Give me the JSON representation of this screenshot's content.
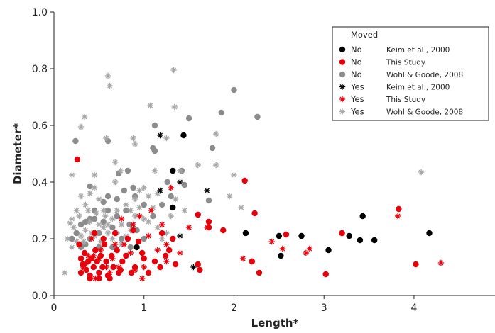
{
  "chart_data": {
    "type": "scatter",
    "xlabel": "Length*",
    "ylabel": "Diameter*",
    "xlim": [
      0,
      4.9
    ],
    "ylim": [
      0,
      1.0
    ],
    "x_ticks": [
      0,
      1,
      2,
      3,
      4
    ],
    "x_tick_labels": [
      "0",
      "1",
      "2",
      "3",
      "4"
    ],
    "y_ticks": [
      0,
      0.2,
      0.4,
      0.6,
      0.8,
      1.0
    ],
    "y_tick_labels": [
      "0.0",
      "0.2",
      "0.4",
      "0.6",
      "0.8",
      "1.0"
    ],
    "grid": false,
    "legend": {
      "title": "Moved",
      "placement": "top-right",
      "entries": [
        {
          "moved": "No",
          "source": "Keim et al., 2000",
          "marker": "circle",
          "color": "#000000"
        },
        {
          "moved": "No",
          "source": "This Study",
          "marker": "circle",
          "color": "#e8000b"
        },
        {
          "moved": "No",
          "source": "Wohl & Goode, 2008",
          "marker": "circle",
          "color": "#8c8c8c"
        },
        {
          "moved": "Yes",
          "source": "Keim et al., 2000",
          "marker": "asterisk",
          "color": "#000000"
        },
        {
          "moved": "Yes",
          "source": "This Study",
          "marker": "asterisk",
          "color": "#e8000b"
        },
        {
          "moved": "Yes",
          "source": "Wohl & Goode, 2008",
          "marker": "asterisk",
          "color": "#a6a6a6"
        }
      ]
    },
    "series": [
      {
        "marker": "circle",
        "color": "#000000",
        "points": [
          [
            1.44,
            0.565
          ],
          [
            1.32,
            0.44
          ],
          [
            1.32,
            0.31
          ],
          [
            2.13,
            0.22
          ],
          [
            2.5,
            0.21
          ],
          [
            2.52,
            0.14
          ],
          [
            2.75,
            0.21
          ],
          [
            3.05,
            0.16
          ],
          [
            3.28,
            0.21
          ],
          [
            3.4,
            0.195
          ],
          [
            3.43,
            0.28
          ],
          [
            3.56,
            0.195
          ],
          [
            4.17,
            0.22
          ],
          [
            0.92,
            0.17
          ]
        ]
      },
      {
        "marker": "circle",
        "color": "#e8000b",
        "points": [
          [
            0.26,
            0.48
          ],
          [
            2.12,
            0.405
          ],
          [
            2.23,
            0.29
          ],
          [
            1.6,
            0.285
          ],
          [
            1.72,
            0.26
          ],
          [
            1.72,
            0.24
          ],
          [
            1.88,
            0.23
          ],
          [
            2.58,
            0.215
          ],
          [
            3.2,
            0.22
          ],
          [
            3.83,
            0.305
          ],
          [
            2.2,
            0.12
          ],
          [
            2.28,
            0.08
          ],
          [
            3.02,
            0.075
          ],
          [
            4.02,
            0.11
          ],
          [
            1.6,
            0.11
          ],
          [
            1.62,
            0.09
          ],
          [
            1.2,
            0.22
          ],
          [
            1.32,
            0.2
          ],
          [
            1.28,
            0.16
          ],
          [
            1.18,
            0.1
          ],
          [
            1.05,
            0.08
          ],
          [
            0.98,
            0.15
          ],
          [
            0.9,
            0.1
          ],
          [
            0.86,
            0.08
          ],
          [
            0.82,
            0.2
          ],
          [
            0.76,
            0.12
          ],
          [
            0.72,
            0.08
          ],
          [
            0.7,
            0.16
          ],
          [
            0.66,
            0.1
          ],
          [
            0.64,
            0.14
          ],
          [
            0.6,
            0.07
          ],
          [
            0.58,
            0.12
          ],
          [
            0.56,
            0.18
          ],
          [
            0.54,
            0.1
          ],
          [
            0.52,
            0.14
          ],
          [
            0.5,
            0.08
          ],
          [
            0.48,
            0.12
          ],
          [
            0.46,
            0.16
          ],
          [
            0.44,
            0.1
          ],
          [
            0.42,
            0.13
          ],
          [
            0.4,
            0.07
          ],
          [
            0.38,
            0.12
          ],
          [
            0.36,
            0.09
          ],
          [
            0.34,
            0.15
          ],
          [
            0.32,
            0.11
          ],
          [
            0.3,
            0.13
          ],
          [
            0.3,
            0.08
          ],
          [
            0.28,
            0.18
          ],
          [
            0.45,
            0.22
          ],
          [
            0.55,
            0.2
          ],
          [
            0.62,
            0.06
          ],
          [
            0.68,
            0.22
          ],
          [
            0.74,
            0.09
          ],
          [
            0.8,
            0.14
          ],
          [
            0.88,
            0.23
          ],
          [
            0.94,
            0.19
          ],
          [
            1.0,
            0.13
          ],
          [
            1.12,
            0.12
          ],
          [
            1.24,
            0.14
          ],
          [
            1.35,
            0.11
          ],
          [
            0.4,
            0.06
          ],
          [
            0.5,
            0.06
          ]
        ]
      },
      {
        "marker": "circle",
        "color": "#8c8c8c",
        "points": [
          [
            0.24,
            0.545
          ],
          [
            0.4,
            0.385
          ],
          [
            0.4,
            0.27
          ],
          [
            0.6,
            0.545
          ],
          [
            0.72,
            0.43
          ],
          [
            0.78,
            0.37
          ],
          [
            0.8,
            0.3
          ],
          [
            0.82,
            0.44
          ],
          [
            0.84,
            0.25
          ],
          [
            0.88,
            0.38
          ],
          [
            0.9,
            0.35
          ],
          [
            0.92,
            0.23
          ],
          [
            1.0,
            0.32
          ],
          [
            1.0,
            0.2
          ],
          [
            1.1,
            0.52
          ],
          [
            1.12,
            0.51
          ],
          [
            1.12,
            0.6
          ],
          [
            1.26,
            0.4
          ],
          [
            1.3,
            0.35
          ],
          [
            1.42,
            0.44
          ],
          [
            1.45,
            0.39
          ],
          [
            1.5,
            0.625
          ],
          [
            1.72,
            0.335
          ],
          [
            1.76,
            0.52
          ],
          [
            1.86,
            0.645
          ],
          [
            2.0,
            0.725
          ],
          [
            2.26,
            0.63
          ],
          [
            0.2,
            0.2
          ],
          [
            0.25,
            0.22
          ],
          [
            0.3,
            0.25
          ],
          [
            0.35,
            0.18
          ],
          [
            0.4,
            0.2
          ],
          [
            0.45,
            0.3
          ],
          [
            0.5,
            0.22
          ],
          [
            0.55,
            0.26
          ],
          [
            0.6,
            0.3
          ],
          [
            0.65,
            0.24
          ],
          [
            0.7,
            0.28
          ],
          [
            0.3,
            0.17
          ],
          [
            0.5,
            0.17
          ],
          [
            0.65,
            0.17
          ],
          [
            0.75,
            0.2
          ],
          [
            0.6,
            0.35
          ],
          [
            0.7,
            0.34
          ],
          [
            0.55,
            0.33
          ],
          [
            0.45,
            0.27
          ],
          [
            0.35,
            0.26
          ],
          [
            0.85,
            0.17
          ],
          [
            1.1,
            0.28
          ],
          [
            1.2,
            0.32
          ]
        ]
      },
      {
        "marker": "asterisk",
        "color": "#000000",
        "points": [
          [
            1.18,
            0.565
          ],
          [
            1.18,
            0.37
          ],
          [
            1.4,
            0.4
          ],
          [
            1.7,
            0.37
          ],
          [
            1.4,
            0.21
          ],
          [
            1.55,
            0.1
          ]
        ]
      },
      {
        "marker": "asterisk",
        "color": "#e8000b",
        "points": [
          [
            1.3,
            0.38
          ],
          [
            1.4,
            0.15
          ],
          [
            1.5,
            0.24
          ],
          [
            1.7,
            0.24
          ],
          [
            2.1,
            0.13
          ],
          [
            2.2,
            0.12
          ],
          [
            2.42,
            0.19
          ],
          [
            2.54,
            0.165
          ],
          [
            2.8,
            0.15
          ],
          [
            2.84,
            0.165
          ],
          [
            3.2,
            0.22
          ],
          [
            3.82,
            0.28
          ],
          [
            4.3,
            0.115
          ],
          [
            1.08,
            0.3
          ],
          [
            1.2,
            0.25
          ],
          [
            1.25,
            0.18
          ],
          [
            1.25,
            0.12
          ],
          [
            1.15,
            0.16
          ],
          [
            1.05,
            0.21
          ],
          [
            0.98,
            0.06
          ],
          [
            0.9,
            0.09
          ],
          [
            0.85,
            0.15
          ],
          [
            0.78,
            0.18
          ],
          [
            0.72,
            0.1
          ],
          [
            0.65,
            0.13
          ],
          [
            0.58,
            0.1
          ],
          [
            0.52,
            0.16
          ],
          [
            0.46,
            0.06
          ],
          [
            0.42,
            0.2
          ],
          [
            0.38,
            0.14
          ],
          [
            0.35,
            0.11
          ],
          [
            0.32,
            0.1
          ],
          [
            0.5,
            0.13
          ],
          [
            0.62,
            0.08
          ],
          [
            0.88,
            0.25
          ],
          [
            0.95,
            0.28
          ],
          [
            1.0,
            0.1
          ],
          [
            0.75,
            0.27
          ],
          [
            0.68,
            0.18
          ],
          [
            0.44,
            0.14
          ]
        ]
      },
      {
        "marker": "asterisk",
        "color": "#a6a6a6",
        "points": [
          [
            0.6,
            0.775
          ],
          [
            0.62,
            0.74
          ],
          [
            1.33,
            0.795
          ],
          [
            0.34,
            0.63
          ],
          [
            0.3,
            0.595
          ],
          [
            1.07,
            0.67
          ],
          [
            1.34,
            0.665
          ],
          [
            0.88,
            0.555
          ],
          [
            0.9,
            0.535
          ],
          [
            0.58,
            0.555
          ],
          [
            1.25,
            0.555
          ],
          [
            0.2,
            0.425
          ],
          [
            0.18,
            0.255
          ],
          [
            0.12,
            0.08
          ],
          [
            0.45,
            0.425
          ],
          [
            0.68,
            0.47
          ],
          [
            0.68,
            0.4
          ],
          [
            0.74,
            0.44
          ],
          [
            0.9,
            0.34
          ],
          [
            1.1,
            0.31
          ],
          [
            1.12,
            0.44
          ],
          [
            1.4,
            0.44
          ],
          [
            1.6,
            0.46
          ],
          [
            1.8,
            0.57
          ],
          [
            1.8,
            0.46
          ],
          [
            1.95,
            0.35
          ],
          [
            2.0,
            0.425
          ],
          [
            2.08,
            0.31
          ],
          [
            4.08,
            0.435
          ],
          [
            0.15,
            0.2
          ],
          [
            0.2,
            0.27
          ],
          [
            0.25,
            0.3
          ],
          [
            0.3,
            0.35
          ],
          [
            0.35,
            0.32
          ],
          [
            0.4,
            0.36
          ],
          [
            0.45,
            0.38
          ],
          [
            0.5,
            0.34
          ],
          [
            0.55,
            0.3
          ],
          [
            0.6,
            0.25
          ],
          [
            0.65,
            0.27
          ],
          [
            0.7,
            0.22
          ],
          [
            0.75,
            0.25
          ],
          [
            0.8,
            0.21
          ],
          [
            0.85,
            0.23
          ],
          [
            0.95,
            0.37
          ],
          [
            1.0,
            0.27
          ],
          [
            1.05,
            0.35
          ],
          [
            1.15,
            0.36
          ],
          [
            1.2,
            0.2
          ],
          [
            1.3,
            0.28
          ],
          [
            0.2,
            0.17
          ],
          [
            0.25,
            0.19
          ],
          [
            0.3,
            0.21
          ],
          [
            0.35,
            0.23
          ],
          [
            0.4,
            0.26
          ],
          [
            0.45,
            0.21
          ],
          [
            0.5,
            0.25
          ],
          [
            0.55,
            0.24
          ],
          [
            0.6,
            0.22
          ],
          [
            0.65,
            0.2
          ],
          [
            0.7,
            0.3
          ],
          [
            0.75,
            0.18
          ],
          [
            0.8,
            0.32
          ],
          [
            0.85,
            0.3
          ],
          [
            0.9,
            0.28
          ],
          [
            0.95,
            0.31
          ],
          [
            1.0,
            0.38
          ],
          [
            1.05,
            0.26
          ],
          [
            1.15,
            0.24
          ],
          [
            1.25,
            0.22
          ],
          [
            1.35,
            0.34
          ],
          [
            1.45,
            0.3
          ],
          [
            0.22,
            0.24
          ],
          [
            0.28,
            0.28
          ],
          [
            0.33,
            0.19
          ],
          [
            0.38,
            0.3
          ],
          [
            0.42,
            0.22
          ],
          [
            0.47,
            0.29
          ],
          [
            0.52,
            0.19
          ],
          [
            0.57,
            0.28
          ]
        ]
      }
    ]
  }
}
